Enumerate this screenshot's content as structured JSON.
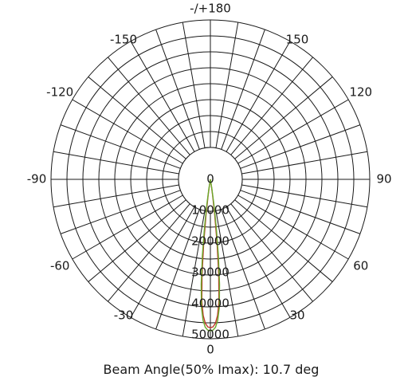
{
  "chart_data": {
    "type": "polar",
    "angle_labels": [
      {
        "angle": 0,
        "text": "0"
      },
      {
        "angle": 30,
        "text": "30"
      },
      {
        "angle": 60,
        "text": "60"
      },
      {
        "angle": 90,
        "text": "90"
      },
      {
        "angle": 120,
        "text": "120"
      },
      {
        "angle": 150,
        "text": "150"
      },
      {
        "angle": 180,
        "text": "-/+180"
      },
      {
        "angle": -150,
        "text": "-150"
      },
      {
        "angle": -120,
        "text": "-120"
      },
      {
        "angle": -90,
        "text": "-90"
      },
      {
        "angle": -60,
        "text": "-60"
      },
      {
        "angle": -30,
        "text": "-30"
      }
    ],
    "radial_ticks": [
      0,
      10000,
      20000,
      30000,
      40000,
      50000
    ],
    "radial_labels": [
      "0",
      "10000",
      "20000",
      "30000",
      "40000",
      "50000"
    ],
    "radial_max": 50000,
    "spoke_step_deg": 10,
    "series": [
      {
        "color": "#c0392b",
        "points": [
          [
            0,
            46500
          ],
          [
            1,
            46300
          ],
          [
            2,
            45200
          ],
          [
            3,
            42800
          ],
          [
            4,
            38500
          ],
          [
            5,
            30000
          ],
          [
            6,
            20000
          ],
          [
            7,
            11000
          ],
          [
            8,
            5000
          ],
          [
            9,
            1500
          ],
          [
            10,
            0
          ]
        ]
      },
      {
        "color": "#6aaa2a",
        "points": [
          [
            0,
            47500
          ],
          [
            1,
            47300
          ],
          [
            2,
            46400
          ],
          [
            3,
            44200
          ],
          [
            4,
            40200
          ],
          [
            5,
            33000
          ],
          [
            6,
            24000
          ],
          [
            7,
            15000
          ],
          [
            8,
            8000
          ],
          [
            9,
            3000
          ],
          [
            10,
            0
          ]
        ]
      }
    ],
    "beam_angle_text": "Beam Angle(50% Imax): 10.7 deg"
  },
  "colors": {
    "grid": "#1a1a1a",
    "background": "#ffffff"
  }
}
